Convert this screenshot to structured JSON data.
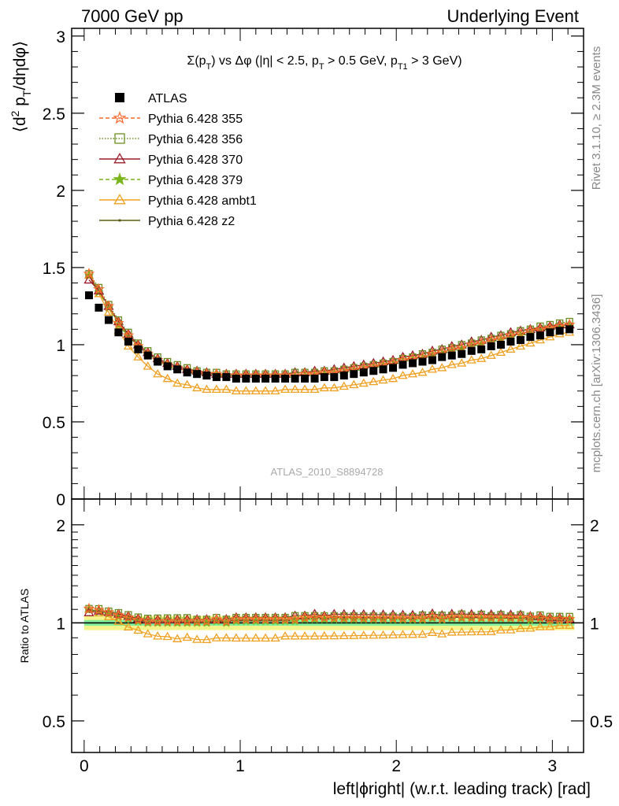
{
  "header": {
    "left": "7000 GeV pp",
    "right": "Underlying Event"
  },
  "side_texts": {
    "rivet": "Rivet 3.1.10, ≥ 2.3M events",
    "mcplots": "mcplots.cern.ch [arXiv:1306.3436]"
  },
  "colors": {
    "atlas": "#000000",
    "p355": "#ff6a2a",
    "p356": "#6b8e23",
    "p370": "#9b1b2a",
    "p379": "#7ab51d",
    "ambt1": "#f0a020",
    "z2": "#5a5a14",
    "band_inner": "#80ee9c",
    "band_outer": "#f4f48a"
  },
  "chart_data": [
    {
      "type": "line",
      "panel": "main",
      "title": "Σ(p_T) vs Δφ (|η| < 2.5, p_T > 0.5 GeV, p_T1 > 3 GeV)",
      "ylabel": "⟨d² p_T/dηdφ⟩",
      "xlim": [
        -0.08,
        3.2
      ],
      "ylim": [
        0,
        3.05
      ],
      "yticks": [
        "0",
        "0.5",
        "1",
        "1.5",
        "2",
        "2.5",
        "3"
      ],
      "xticks": [
        "0",
        "1",
        "2",
        "3"
      ],
      "grid": false,
      "legend_position": "top-left",
      "watermark": "ATLAS_2010_S8894728",
      "series": [
        {
          "name": "ATLAS",
          "key": "atlas"
        },
        {
          "name": "Pythia 6.428 355",
          "key": "p355"
        },
        {
          "name": "Pythia 6.428 356",
          "key": "p356"
        },
        {
          "name": "Pythia 6.428 370",
          "key": "p370"
        },
        {
          "name": "Pythia 6.428 379",
          "key": "p379"
        },
        {
          "name": "Pythia 6.428 ambt1",
          "key": "ambt1"
        },
        {
          "name": "Pythia 6.428 z2",
          "key": "z2"
        }
      ],
      "x": [
        0.031,
        0.094,
        0.157,
        0.22,
        0.283,
        0.346,
        0.408,
        0.471,
        0.534,
        0.597,
        0.66,
        0.723,
        0.785,
        0.848,
        0.911,
        0.974,
        1.037,
        1.1,
        1.162,
        1.225,
        1.288,
        1.351,
        1.414,
        1.477,
        1.539,
        1.602,
        1.665,
        1.728,
        1.791,
        1.854,
        1.916,
        1.979,
        2.042,
        2.105,
        2.168,
        2.231,
        2.293,
        2.356,
        2.419,
        2.482,
        2.545,
        2.608,
        2.67,
        2.733,
        2.796,
        2.859,
        2.922,
        2.985,
        3.047,
        3.11
      ],
      "atlas": [
        1.32,
        1.24,
        1.16,
        1.08,
        1.02,
        0.97,
        0.93,
        0.89,
        0.86,
        0.84,
        0.82,
        0.81,
        0.8,
        0.79,
        0.79,
        0.78,
        0.78,
        0.78,
        0.78,
        0.78,
        0.78,
        0.78,
        0.78,
        0.78,
        0.79,
        0.79,
        0.8,
        0.81,
        0.82,
        0.83,
        0.84,
        0.85,
        0.87,
        0.88,
        0.89,
        0.9,
        0.92,
        0.93,
        0.94,
        0.96,
        0.97,
        0.99,
        1.0,
        1.02,
        1.03,
        1.05,
        1.06,
        1.08,
        1.09,
        1.1
      ],
      "p355": [
        1.46,
        1.36,
        1.25,
        1.14,
        1.06,
        0.99,
        0.94,
        0.9,
        0.87,
        0.85,
        0.83,
        0.82,
        0.81,
        0.81,
        0.8,
        0.8,
        0.8,
        0.8,
        0.8,
        0.8,
        0.8,
        0.8,
        0.81,
        0.81,
        0.82,
        0.82,
        0.83,
        0.84,
        0.85,
        0.86,
        0.87,
        0.88,
        0.9,
        0.91,
        0.92,
        0.94,
        0.95,
        0.97,
        0.98,
        1.0,
        1.01,
        1.03,
        1.04,
        1.06,
        1.07,
        1.09,
        1.1,
        1.11,
        1.12,
        1.13
      ],
      "p356": [
        1.46,
        1.37,
        1.26,
        1.16,
        1.08,
        1.01,
        0.96,
        0.92,
        0.89,
        0.87,
        0.85,
        0.83,
        0.82,
        0.82,
        0.81,
        0.81,
        0.81,
        0.81,
        0.81,
        0.81,
        0.81,
        0.82,
        0.82,
        0.82,
        0.83,
        0.83,
        0.84,
        0.85,
        0.86,
        0.87,
        0.88,
        0.89,
        0.91,
        0.92,
        0.94,
        0.95,
        0.97,
        0.98,
        1.0,
        1.01,
        1.03,
        1.04,
        1.06,
        1.07,
        1.09,
        1.1,
        1.12,
        1.13,
        1.14,
        1.15
      ],
      "p370": [
        1.42,
        1.35,
        1.25,
        1.15,
        1.07,
        1.0,
        0.95,
        0.91,
        0.88,
        0.86,
        0.84,
        0.83,
        0.82,
        0.81,
        0.81,
        0.81,
        0.81,
        0.81,
        0.81,
        0.81,
        0.81,
        0.82,
        0.82,
        0.83,
        0.83,
        0.84,
        0.85,
        0.86,
        0.87,
        0.88,
        0.89,
        0.9,
        0.92,
        0.93,
        0.94,
        0.96,
        0.97,
        0.99,
        1.0,
        1.02,
        1.03,
        1.05,
        1.06,
        1.08,
        1.09,
        1.1,
        1.11,
        1.12,
        1.13,
        1.13
      ],
      "p379": [
        1.45,
        1.34,
        1.24,
        1.13,
        1.05,
        0.98,
        0.93,
        0.89,
        0.86,
        0.84,
        0.82,
        0.81,
        0.8,
        0.8,
        0.79,
        0.79,
        0.79,
        0.79,
        0.79,
        0.79,
        0.79,
        0.79,
        0.8,
        0.8,
        0.81,
        0.81,
        0.82,
        0.83,
        0.84,
        0.85,
        0.86,
        0.87,
        0.89,
        0.9,
        0.91,
        0.93,
        0.94,
        0.96,
        0.97,
        0.99,
        1.0,
        1.02,
        1.03,
        1.05,
        1.06,
        1.07,
        1.09,
        1.1,
        1.11,
        1.12
      ],
      "ambt1": [
        1.45,
        1.33,
        1.21,
        1.09,
        0.99,
        0.92,
        0.86,
        0.81,
        0.78,
        0.75,
        0.74,
        0.72,
        0.71,
        0.71,
        0.71,
        0.7,
        0.7,
        0.7,
        0.7,
        0.7,
        0.71,
        0.71,
        0.71,
        0.71,
        0.72,
        0.72,
        0.73,
        0.74,
        0.75,
        0.76,
        0.77,
        0.78,
        0.8,
        0.81,
        0.82,
        0.84,
        0.85,
        0.87,
        0.88,
        0.9,
        0.91,
        0.93,
        0.95,
        0.97,
        0.99,
        1.01,
        1.03,
        1.05,
        1.07,
        1.08
      ],
      "z2": [
        1.45,
        1.35,
        1.25,
        1.14,
        1.06,
        0.99,
        0.94,
        0.9,
        0.87,
        0.85,
        0.83,
        0.82,
        0.81,
        0.8,
        0.8,
        0.8,
        0.8,
        0.8,
        0.8,
        0.8,
        0.8,
        0.8,
        0.81,
        0.81,
        0.82,
        0.82,
        0.83,
        0.84,
        0.85,
        0.86,
        0.87,
        0.88,
        0.9,
        0.91,
        0.92,
        0.94,
        0.95,
        0.97,
        0.98,
        1.0,
        1.01,
        1.03,
        1.04,
        1.06,
        1.07,
        1.09,
        1.1,
        1.11,
        1.12,
        1.13
      ]
    },
    {
      "type": "line",
      "panel": "ratio",
      "ylabel": "Ratio to ATLAS",
      "xlabel": "left|ϕright| (w.r.t. leading track) [rad]",
      "yscale": "log",
      "ylim": [
        0.4,
        2.4
      ],
      "yticks": [
        "0.5",
        "1",
        "2"
      ],
      "xticks": [
        "0",
        "1",
        "2",
        "3"
      ],
      "band_inner": [
        0.98,
        1.02
      ],
      "band_outer": [
        0.95,
        1.05
      ],
      "note": "ratio series are each model divided by ATLAS at the same x"
    }
  ]
}
